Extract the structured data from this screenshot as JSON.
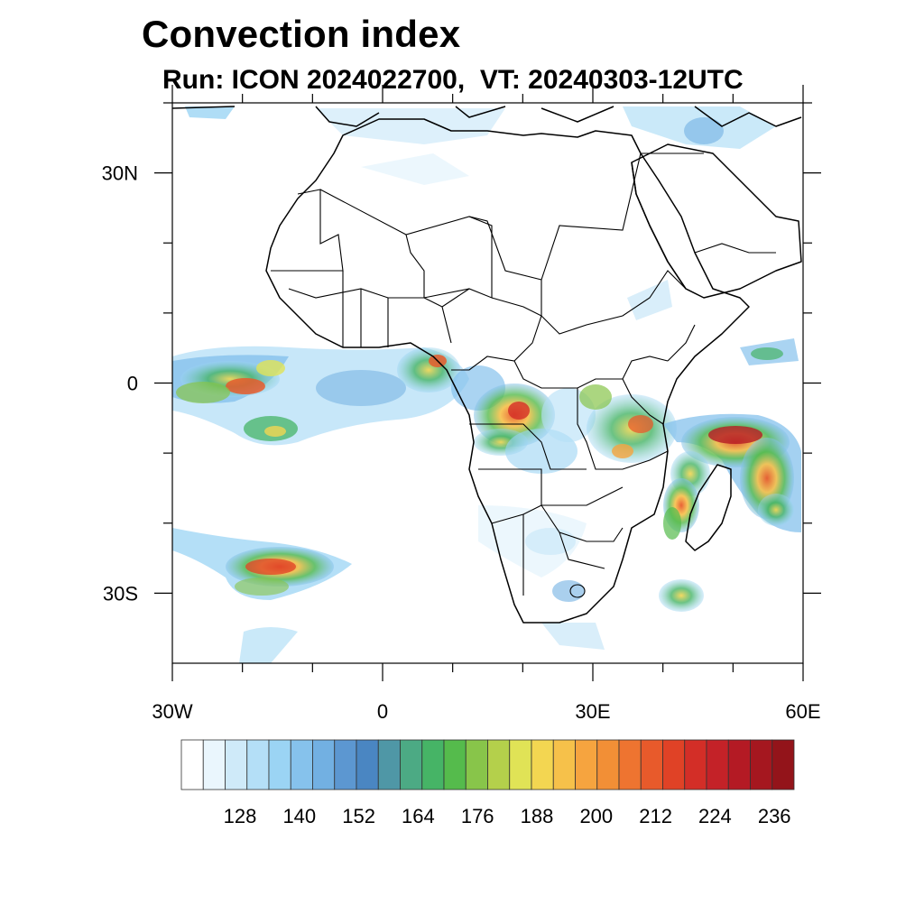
{
  "title": "Convection index",
  "subtitle": "Run: ICON 2024022700,  VT: 20240303-12UTC",
  "map": {
    "region": "Africa",
    "lon_range": [
      -30,
      60
    ],
    "lat_range": [
      -40,
      40
    ],
    "lat_ticks": [
      {
        "value": 30,
        "label": "30N"
      },
      {
        "value": 0,
        "label": "0"
      },
      {
        "value": -30,
        "label": "30S"
      }
    ],
    "lon_ticks": [
      {
        "value": -30,
        "label": "30W"
      },
      {
        "value": 0,
        "label": "0"
      },
      {
        "value": 30,
        "label": "30E"
      },
      {
        "value": 60,
        "label": "60E"
      }
    ],
    "colors": {
      "background": "#ffffff",
      "coastline": "#000000",
      "borders": "#000000"
    }
  },
  "colorbar": {
    "labels": [
      "128",
      "140",
      "152",
      "164",
      "176",
      "188",
      "200",
      "212",
      "224",
      "236"
    ],
    "colors": [
      "#ffffff",
      "#eaf6fd",
      "#cfeaf9",
      "#b4dff7",
      "#9bd4f4",
      "#86c2ec",
      "#72b0e2",
      "#5c97d1",
      "#4a86c2",
      "#4f97a6",
      "#4caa84",
      "#46b466",
      "#55bb4c",
      "#88c54a",
      "#b4d04b",
      "#e0e356",
      "#f3d651",
      "#f6c14a",
      "#f6a43f",
      "#f28f36",
      "#ee7430",
      "#e85a2b",
      "#e04226",
      "#d32e27",
      "#c42228",
      "#b41a24",
      "#a5171f",
      "#93141a"
    ]
  }
}
